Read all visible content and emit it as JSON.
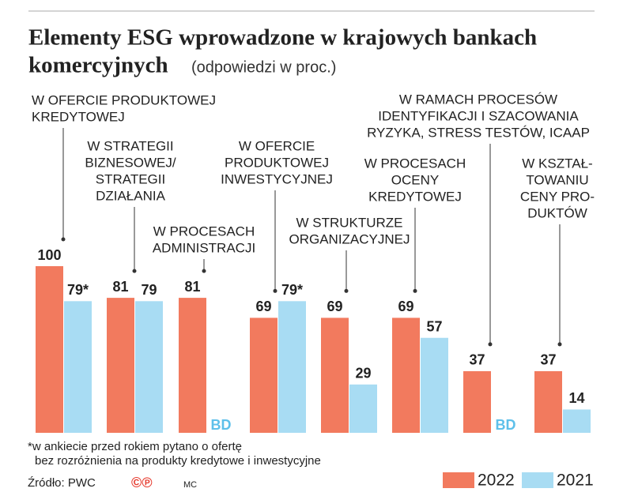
{
  "chart_data": {
    "type": "bar",
    "title": [
      "Elementy ESG wprowadzone w krajowych bankach",
      "komercyjnych"
    ],
    "subtitle": "(odpowiedzi w proc.)",
    "categories": [
      [
        "W OFERCIE PRODUKTOWEJ",
        "KREDYTOWEJ"
      ],
      [
        "W STRATEGII",
        "BIZNESOWEJ/",
        "STRATEGII",
        "DZIAŁANIA"
      ],
      [
        "W PROCESACH",
        "ADMINISTRACJI"
      ],
      [
        "W OFERCIE",
        "PRODUKTOWEJ",
        "INWESTYCYJNEJ"
      ],
      [
        "W STRUKTURZE",
        "ORGANIZACYJNEJ"
      ],
      [
        "W PROCESACH",
        "OCENY",
        "KREDYTOWEJ"
      ],
      [
        "W RAMACH PROCESÓW",
        "IDENTYFIKACJI I SZACOWANIA",
        "RYZYKA, STRESS TESTÓW, ICAAP"
      ],
      [
        "W KSZTAŁ-",
        "TOWANIU",
        "CENY PRO-",
        "DUKTÓW"
      ]
    ],
    "series": [
      {
        "name": "2022",
        "color": "#f27a5e",
        "values": [
          100,
          81,
          81,
          69,
          69,
          69,
          37,
          37
        ]
      },
      {
        "name": "2021",
        "color": "#a8dcf3",
        "values": [
          79,
          79,
          null,
          79,
          29,
          57,
          null,
          14
        ],
        "value_labels": [
          "79*",
          "79",
          "BD",
          "79*",
          "29",
          "57",
          "BD",
          "14"
        ]
      }
    ],
    "ylim": [
      0,
      100
    ],
    "footnote": [
      "*w ankiecie przed rokiem pytano o ofertę",
      "bez rozróżnienia na produkty kredytowe i inwestycyjne"
    ],
    "source": "Źródło: PWC",
    "logo": "©℗",
    "author": "MC"
  }
}
